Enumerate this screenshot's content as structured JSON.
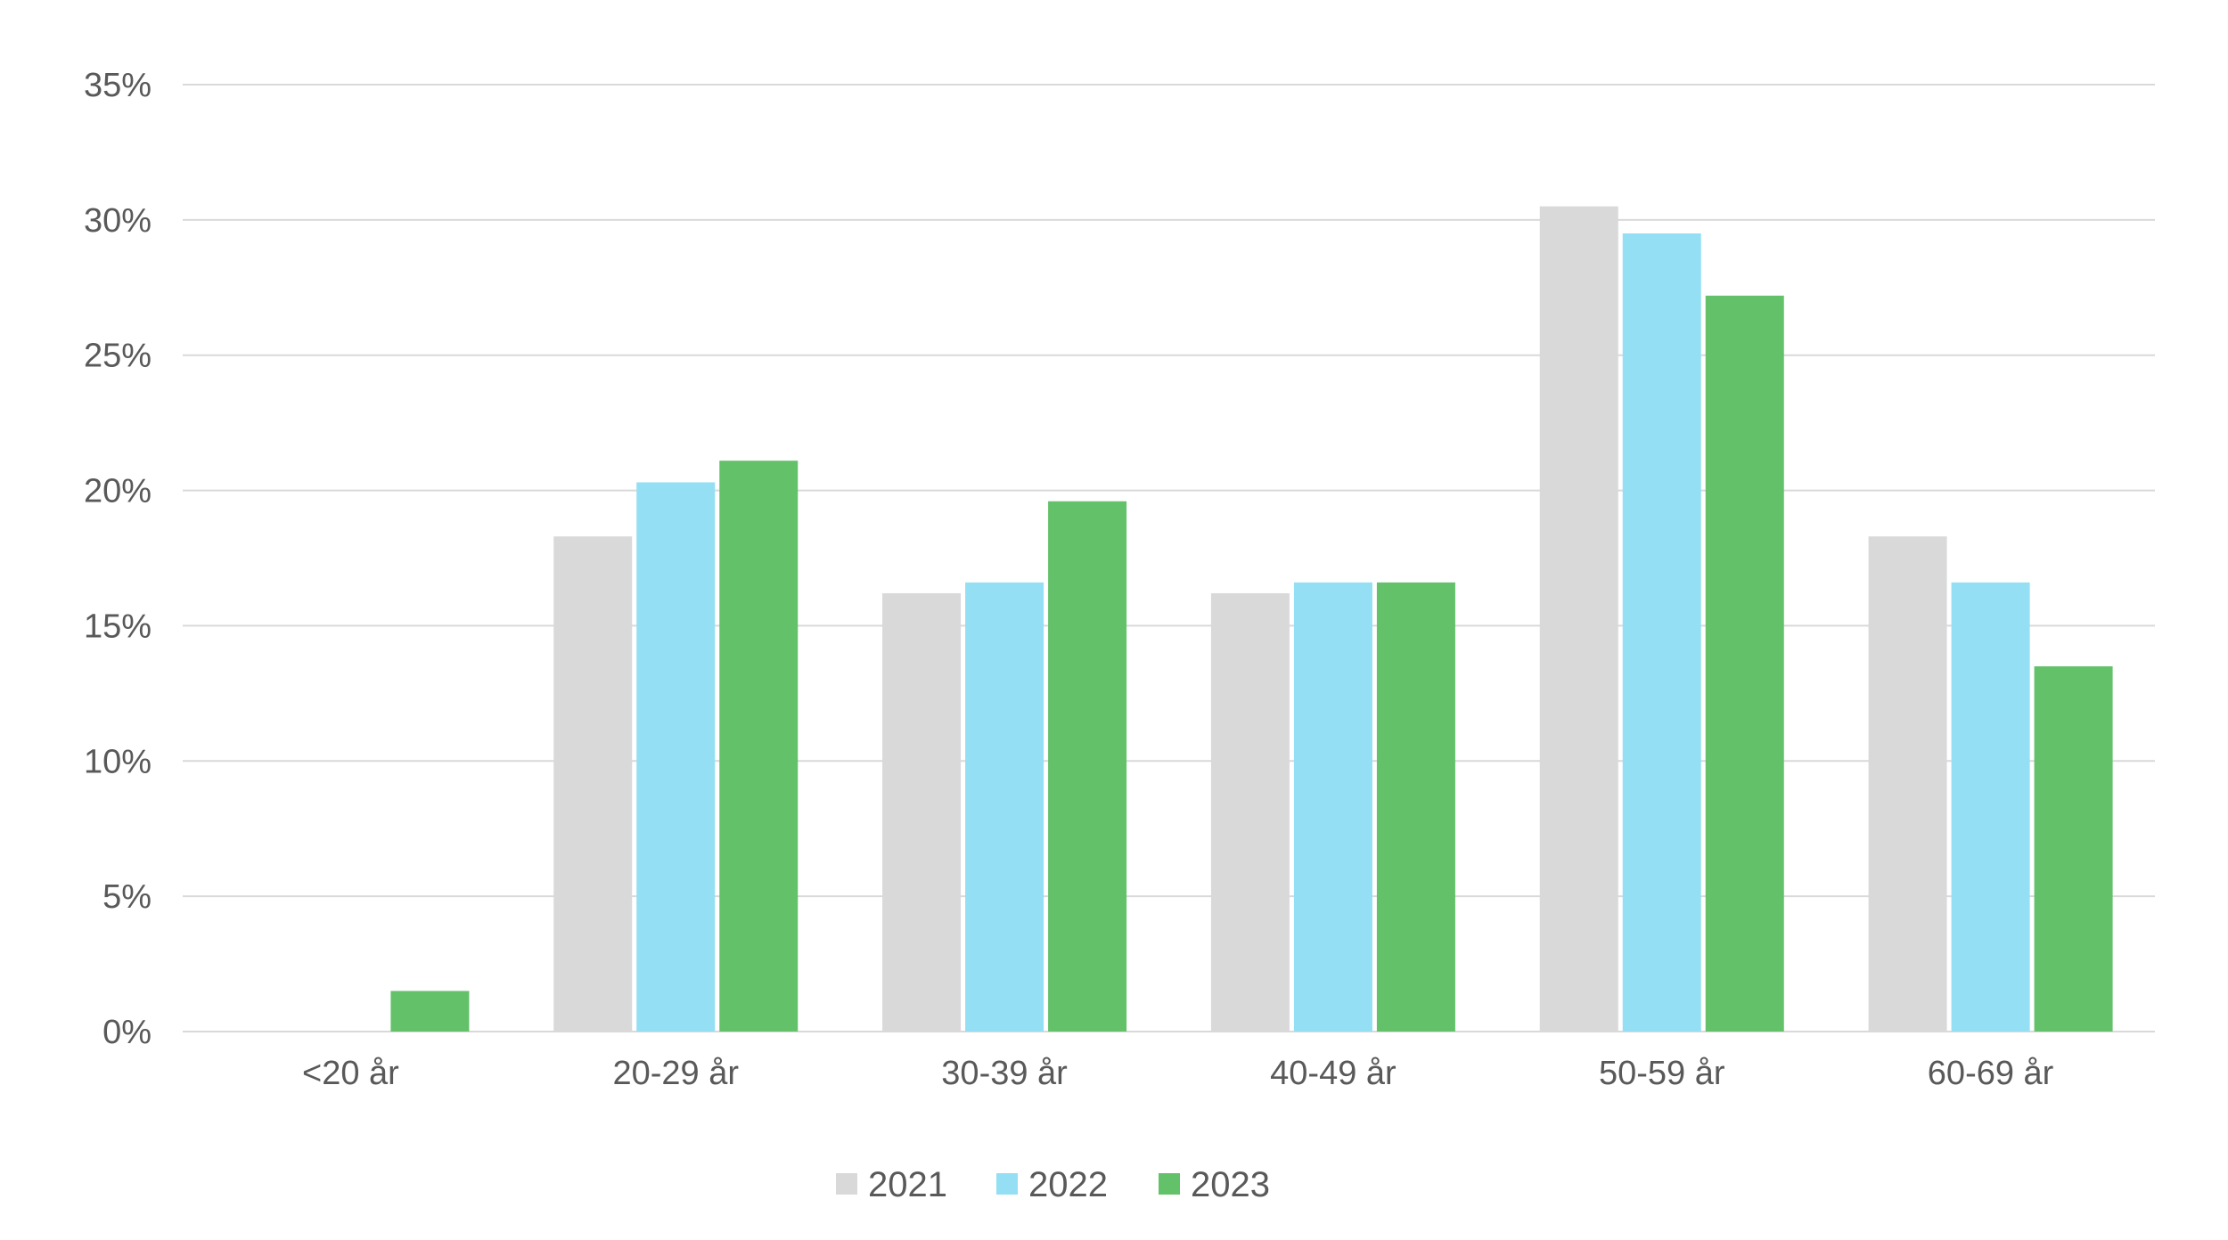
{
  "chart_data": {
    "type": "bar",
    "categories": [
      "<20 år",
      "20-29 år",
      "30-39 år",
      "40-49 år",
      "50-59 år",
      "60-69 år"
    ],
    "series": [
      {
        "name": "2021",
        "color": "#d9d9d9",
        "values": [
          0,
          18.3,
          16.2,
          16.2,
          30.5,
          18.3
        ]
      },
      {
        "name": "2022",
        "color": "#94dff4",
        "values": [
          0,
          20.3,
          16.6,
          16.6,
          29.5,
          16.6
        ]
      },
      {
        "name": "2023",
        "color": "#63c16a",
        "values": [
          1.5,
          21.1,
          19.6,
          16.6,
          27.2,
          13.5
        ]
      }
    ],
    "y_ticks": [
      "0%",
      "5%",
      "10%",
      "15%",
      "20%",
      "25%",
      "30%",
      "35%"
    ],
    "ylim": [
      0,
      35
    ],
    "grid": true,
    "legend_position": "bottom-center",
    "title": "",
    "xlabel": "",
    "ylabel": ""
  }
}
